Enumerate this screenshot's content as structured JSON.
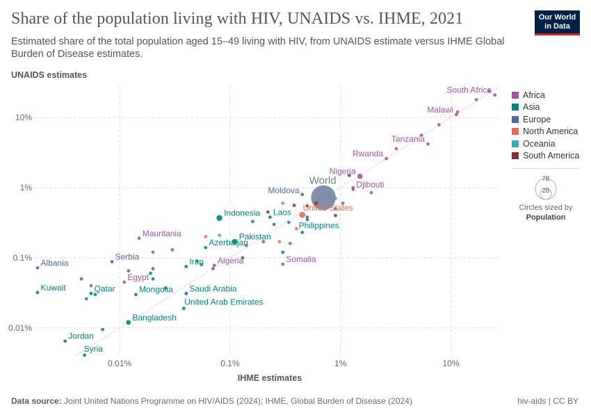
{
  "header": {
    "title": "Share of the population living with HIV, UNAIDS vs. IHME, 2021",
    "subtitle": "Estimated share of the total population aged 15–49 living with HIV, from UNAIDS estimate versus IHME Global Burden of Disease estimates.",
    "logo_line1": "Our World",
    "logo_line2": "in Data"
  },
  "footer": {
    "source_label": "Data source:",
    "source_text": "Joint United Nations Programme on HIV/AIDS (2024); IHME, Global Burden of Disease (2024)",
    "right_text": "hiv-aids | CC BY"
  },
  "size_legend": {
    "large_label": "7B",
    "small_label": "2B",
    "caption_line1": "Circles sized by",
    "caption_line2": "Population"
  },
  "colors": {
    "Africa": "#a2559c",
    "Asia": "#00847e",
    "Europe": "#4c6a9c",
    "North America": "#e56e5a",
    "Oceania": "#38aaba",
    "South America": "#883039",
    "World": "#6b7a99",
    "grid": "#dddddd",
    "logo_bg": "#002147",
    "logo_accent": "#ce261e"
  },
  "chart_data": {
    "type": "scatter",
    "xscale": "log",
    "yscale": "log",
    "xlabel": "IHME estimates",
    "ylabel": "UNAIDS estimates",
    "x_ticks": [
      "0.01%",
      "0.1%",
      "1%",
      "10%"
    ],
    "y_ticks": [
      "0.01%",
      "0.1%",
      "1%",
      "10%"
    ],
    "xlim": [
      0.0017,
      27
    ],
    "ylim": [
      0.004,
      28
    ],
    "legend": [
      "Africa",
      "Asia",
      "Europe",
      "North America",
      "Oceania",
      "South America"
    ],
    "legend_position": "right",
    "reference_line": "y = x (dotted)",
    "labeled_points": [
      {
        "name": "South Africa",
        "region": "Africa",
        "x": 25,
        "y": 21
      },
      {
        "name": "Malawi",
        "region": "Africa",
        "x": 11.2,
        "y": 11
      },
      {
        "name": "Tanzania",
        "region": "Africa",
        "x": 6.2,
        "y": 4.2
      },
      {
        "name": "Rwanda",
        "region": "Africa",
        "x": 2.6,
        "y": 2.6
      },
      {
        "name": "Nigeria",
        "region": "Africa",
        "x": 1.5,
        "y": 1.45
      },
      {
        "name": "Djibouti",
        "region": "Africa",
        "x": 1.3,
        "y": 0.95
      },
      {
        "name": "World",
        "region": "World",
        "x": 0.7,
        "y": 0.72
      },
      {
        "name": "Moldova",
        "region": "Europe",
        "x": 0.45,
        "y": 0.8
      },
      {
        "name": "United States",
        "region": "North America",
        "x": 0.45,
        "y": 0.41
      },
      {
        "name": "Laos",
        "region": "Asia",
        "x": 0.23,
        "y": 0.38
      },
      {
        "name": "Indonesia",
        "region": "Asia",
        "x": 0.08,
        "y": 0.37
      },
      {
        "name": "Philippines",
        "region": "Asia",
        "x": 0.45,
        "y": 0.23
      },
      {
        "name": "Pakistan",
        "region": "Asia",
        "x": 0.11,
        "y": 0.17
      },
      {
        "name": "Azerbaijan",
        "region": "Asia",
        "x": 0.06,
        "y": 0.14
      },
      {
        "name": "Mauritania",
        "region": "Africa",
        "x": 0.015,
        "y": 0.19
      },
      {
        "name": "Serbia",
        "region": "Europe",
        "x": 0.0085,
        "y": 0.088
      },
      {
        "name": "Iran",
        "region": "Asia",
        "x": 0.04,
        "y": 0.075
      },
      {
        "name": "Algeria",
        "region": "Africa",
        "x": 0.072,
        "y": 0.078
      },
      {
        "name": "Somalia",
        "region": "Africa",
        "x": 0.3,
        "y": 0.081
      },
      {
        "name": "Albania",
        "region": "Europe",
        "x": 0.0018,
        "y": 0.072
      },
      {
        "name": "Egypt",
        "region": "Africa",
        "x": 0.011,
        "y": 0.045
      },
      {
        "name": "Kuwait",
        "region": "Asia",
        "x": 0.0018,
        "y": 0.032
      },
      {
        "name": "Qatar",
        "region": "Asia",
        "x": 0.0055,
        "y": 0.031
      },
      {
        "name": "Mongolia",
        "region": "Asia",
        "x": 0.014,
        "y": 0.03
      },
      {
        "name": "Saudi Arabia",
        "region": "Asia",
        "x": 0.04,
        "y": 0.031
      },
      {
        "name": "United Arab Emirates",
        "region": "Asia",
        "x": 0.038,
        "y": 0.019
      },
      {
        "name": "Bangladesh",
        "region": "Asia",
        "x": 0.012,
        "y": 0.012
      },
      {
        "name": "Jordan",
        "region": "Asia",
        "x": 0.0032,
        "y": 0.0065
      },
      {
        "name": "Syria",
        "region": "Asia",
        "x": 0.0048,
        "y": 0.0041
      }
    ]
  }
}
